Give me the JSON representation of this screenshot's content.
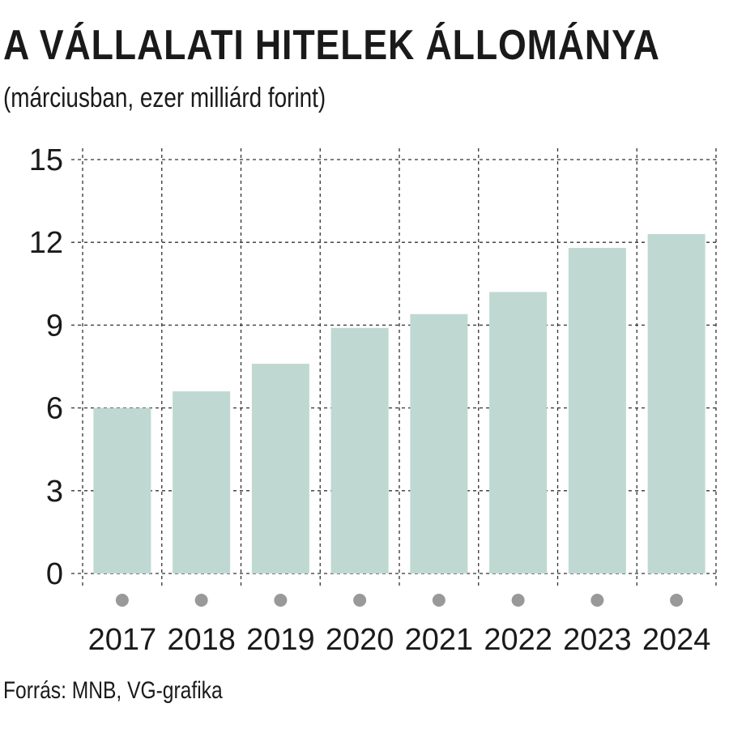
{
  "header": {
    "title": "A VÁLLALATI HITELEK ÁLLOMÁNYA",
    "subtitle": "(márciusban, ezer milliárd forint)"
  },
  "footer": {
    "source": "Forrás: MNB, VG-grafika"
  },
  "colors": {
    "bar": "#bfd9d2",
    "grid": "#333333",
    "marker": "#999999"
  },
  "chart_data": {
    "type": "bar",
    "title": "A VÁLLALATI HITELEK ÁLLOMÁNYA",
    "subtitle": "(márciusban, ezer milliárd forint)",
    "categories": [
      "2017",
      "2018",
      "2019",
      "2020",
      "2021",
      "2022",
      "2023",
      "2024"
    ],
    "values": [
      6.0,
      6.6,
      7.6,
      8.9,
      9.4,
      10.2,
      11.8,
      12.3
    ],
    "ylim": [
      0,
      15
    ],
    "yticks": [
      "0",
      "3",
      "6",
      "9",
      "12",
      "15"
    ],
    "grid": true,
    "xlabel": "",
    "ylabel": ""
  }
}
